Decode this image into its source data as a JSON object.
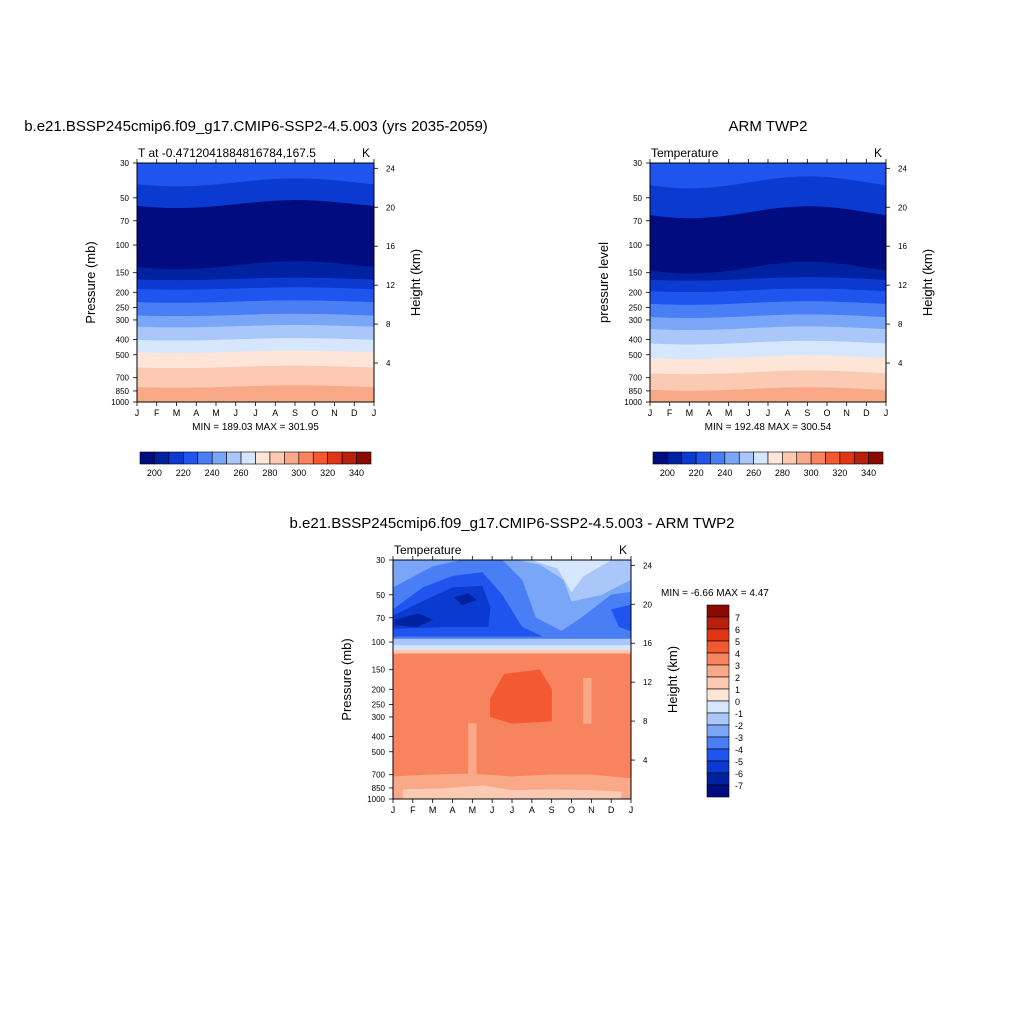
{
  "chart_data": [
    {
      "type": "heatmap",
      "title": "b.e21.BSSP245cmip6.f09_g17.CMIP6-SSP2-4.5.003 (yrs 2035-2059)",
      "subtitle_left": "T at -0.4712041884816784,167.5",
      "subtitle_right": "K",
      "ylabel": "Pressure (mb)",
      "ylabel_right": "Height (km)",
      "x": [
        "J",
        "F",
        "M",
        "A",
        "M",
        "J",
        "J",
        "A",
        "S",
        "O",
        "N",
        "D",
        "J"
      ],
      "y": [
        "30",
        "50",
        "70",
        "100",
        "150",
        "200",
        "250",
        "300",
        "400",
        "500",
        "700",
        "850",
        "1000"
      ],
      "y_right": [
        "24",
        "20",
        "16",
        "12",
        "8",
        "4"
      ],
      "stats": "MIN = 189.03 MAX = 301.95",
      "colorbar_labels": [
        "200",
        "220",
        "240",
        "260",
        "280",
        "300",
        "320",
        "340"
      ]
    },
    {
      "type": "heatmap",
      "title": "ARM TWP2",
      "subtitle_left": "Temperature",
      "subtitle_right": "K",
      "ylabel": "pressure level",
      "ylabel_right": "Height (km)",
      "x": [
        "J",
        "F",
        "M",
        "A",
        "M",
        "J",
        "J",
        "A",
        "S",
        "O",
        "N",
        "D",
        "J"
      ],
      "y": [
        "30",
        "50",
        "70",
        "100",
        "150",
        "200",
        "250",
        "300",
        "400",
        "500",
        "700",
        "850",
        "1000"
      ],
      "y_right": [
        "24",
        "20",
        "16",
        "12",
        "8",
        "4"
      ],
      "stats": "MIN = 192.48 MAX = 300.54",
      "colorbar_labels": [
        "200",
        "220",
        "240",
        "260",
        "280",
        "300",
        "320",
        "340"
      ]
    },
    {
      "type": "heatmap",
      "title": "b.e21.BSSP245cmip6.f09_g17.CMIP6-SSP2-4.5.003 - ARM TWP2",
      "subtitle_left": "Temperature",
      "subtitle_right": "K",
      "ylabel": "Pressure (mb)",
      "ylabel_right": "Height (km)",
      "x": [
        "J",
        "F",
        "M",
        "A",
        "M",
        "J",
        "J",
        "A",
        "S",
        "O",
        "N",
        "D",
        "J"
      ],
      "y": [
        "30",
        "50",
        "70",
        "100",
        "150",
        "200",
        "250",
        "300",
        "400",
        "500",
        "700",
        "850",
        "1000"
      ],
      "y_right": [
        "24",
        "20",
        "16",
        "12",
        "8",
        "4"
      ],
      "stats": "MIN =  -6.66 MAX =   4.47",
      "colorbar_labels": [
        "7",
        "6",
        "5",
        "4",
        "3",
        "2",
        "1",
        "0",
        "-1",
        "-2",
        "-3",
        "-4",
        "-5",
        "-6",
        "-7"
      ]
    }
  ],
  "colors": {
    "abs_scale": [
      "#000c80",
      "#0022a0",
      "#0a3ad0",
      "#1f55ee",
      "#4a7ef5",
      "#7aa6f8",
      "#aac7fa",
      "#d6e6fc",
      "#fde6d8",
      "#fcc9b2",
      "#f9a888",
      "#f7845e",
      "#f45a32",
      "#e03616",
      "#b8200c",
      "#8b0a00"
    ],
    "diff_scale": [
      "#8b0a00",
      "#b8200c",
      "#e03616",
      "#f45a32",
      "#f7845e",
      "#f9a888",
      "#fcc9b2",
      "#fde6d8",
      "#d6e6fc",
      "#aac7fa",
      "#7aa6f8",
      "#4a7ef5",
      "#1f55ee",
      "#0a3ad0",
      "#0022a0",
      "#000c80"
    ]
  }
}
